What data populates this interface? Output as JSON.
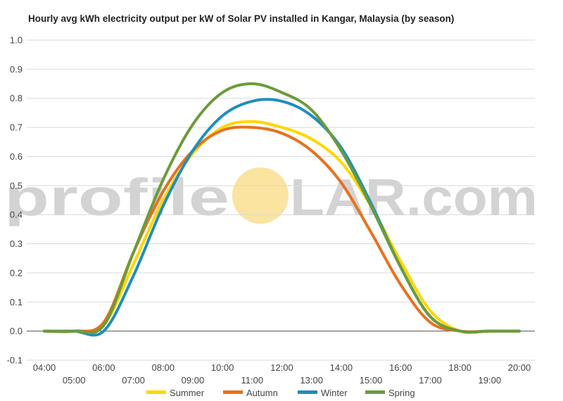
{
  "watermark": {
    "prefix": "profile",
    "suffix": "LAR.com",
    "sun_color": "#fbe3a0"
  },
  "chart_data": {
    "type": "line",
    "title": "Hourly avg kWh electricity output per kW of Solar PV installed in Kangar, Malaysia (by season)",
    "xlabel": "",
    "ylabel": "",
    "x": [
      "04:00",
      "05:00",
      "06:00",
      "07:00",
      "08:00",
      "09:00",
      "10:00",
      "11:00",
      "12:00",
      "13:00",
      "14:00",
      "15:00",
      "16:00",
      "17:00",
      "18:00",
      "19:00",
      "20:00"
    ],
    "ylim": [
      -0.1,
      1.0
    ],
    "yticks": [
      "1.0",
      "0.9",
      "0.8",
      "0.7",
      "0.6",
      "0.5",
      "0.4",
      "0.3",
      "0.2",
      "0.1",
      "0.0",
      "-0.1"
    ],
    "ytick_values": [
      1.0,
      0.9,
      0.8,
      0.7,
      0.6,
      0.5,
      0.4,
      0.3,
      0.2,
      0.1,
      0.0,
      -0.1
    ],
    "grid": true,
    "legend_position": "bottom",
    "series": [
      {
        "name": "Summer",
        "color": "#ffd700",
        "values": [
          0.0,
          0.0,
          0.02,
          0.23,
          0.45,
          0.61,
          0.7,
          0.72,
          0.7,
          0.66,
          0.58,
          0.43,
          0.24,
          0.07,
          0.0,
          0.0,
          0.0
        ]
      },
      {
        "name": "Autumn",
        "color": "#e8711e",
        "values": [
          0.0,
          0.0,
          0.03,
          0.27,
          0.48,
          0.62,
          0.69,
          0.7,
          0.68,
          0.62,
          0.51,
          0.34,
          0.16,
          0.03,
          0.0,
          0.0,
          0.0
        ]
      },
      {
        "name": "Winter",
        "color": "#1f8ebd",
        "values": [
          0.0,
          0.0,
          0.0,
          0.19,
          0.43,
          0.62,
          0.74,
          0.79,
          0.79,
          0.74,
          0.63,
          0.44,
          0.22,
          0.05,
          0.0,
          0.0,
          0.0
        ]
      },
      {
        "name": "Spring",
        "color": "#6b9b3a",
        "values": [
          0.0,
          0.0,
          0.02,
          0.27,
          0.52,
          0.71,
          0.82,
          0.85,
          0.82,
          0.76,
          0.62,
          0.43,
          0.22,
          0.05,
          0.0,
          0.0,
          0.0
        ]
      }
    ]
  }
}
